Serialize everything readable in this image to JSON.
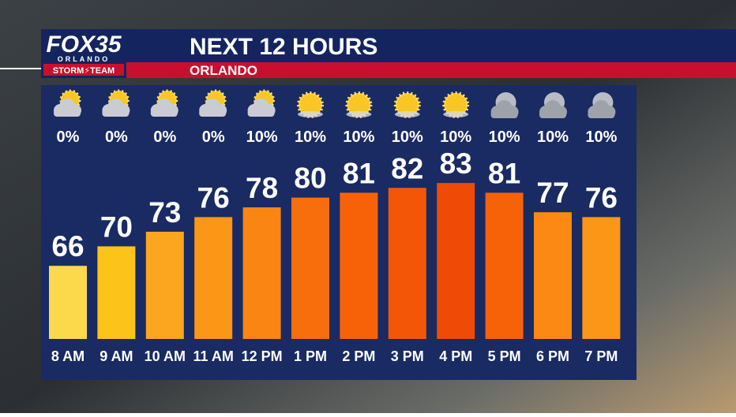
{
  "branding": {
    "logo": "FOX35",
    "logo_city": "ORLANDO",
    "logo_team": "STORM⚡TEAM"
  },
  "chart_data": {
    "type": "bar",
    "title": "NEXT 12 HOURS",
    "subtitle": "ORLANDO",
    "categories": [
      "8 AM",
      "9 AM",
      "10 AM",
      "11 AM",
      "12 PM",
      "1 PM",
      "2 PM",
      "3 PM",
      "4 PM",
      "5 PM",
      "6 PM",
      "7 PM"
    ],
    "values": [
      66,
      70,
      73,
      76,
      78,
      80,
      81,
      82,
      83,
      81,
      77,
      76
    ],
    "colors": [
      "#fcd94a",
      "#fcc419",
      "#fba61e",
      "#fb9617",
      "#fa8512",
      "#f96e0c",
      "#f76209",
      "#f45607",
      "#ef4b06",
      "#f76209",
      "#fb8913",
      "#fb9617"
    ],
    "ylim": [
      51,
      100
    ],
    "precip": {
      "values": [
        0,
        0,
        0,
        0,
        10,
        10,
        10,
        10,
        10,
        10,
        10,
        10
      ],
      "value_labels": [
        "0%",
        "0%",
        "0%",
        "0%",
        "10%",
        "10%",
        "10%",
        "10%",
        "10%",
        "10%",
        "10%",
        "10%"
      ]
    },
    "icons": [
      "partly-cloudy",
      "partly-cloudy",
      "partly-cloudy",
      "partly-cloudy",
      "partly-cloudy",
      "sunny",
      "sunny",
      "sunny",
      "sunny",
      "night",
      "night",
      "night"
    ]
  }
}
